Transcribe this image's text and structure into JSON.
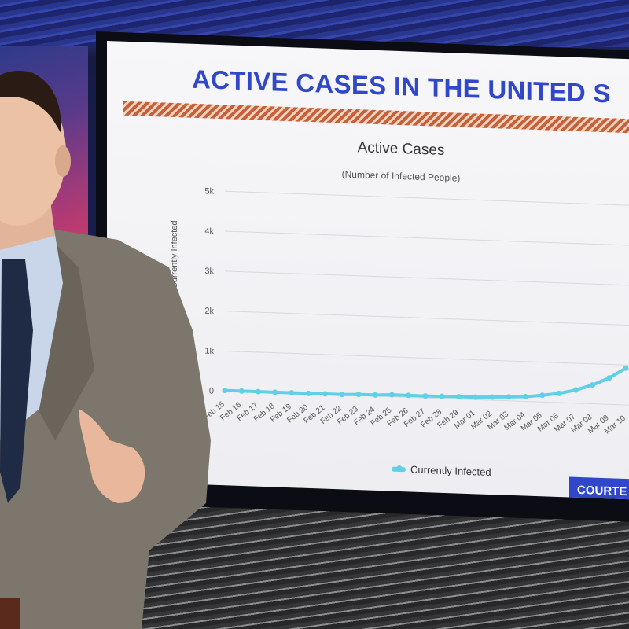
{
  "screen": {
    "headline": "ACTIVE CASES IN THE UNITED S",
    "credit": "COURTE"
  },
  "chart_data": {
    "type": "line",
    "title": "Active Cases",
    "subtitle": "(Number of Infected People)",
    "ylabel": "Coronavirus Currently Infected",
    "xlabel": "",
    "ylim": [
      0,
      5000
    ],
    "y_ticks": [
      "0",
      "1k",
      "2k",
      "3k",
      "4k",
      "5k"
    ],
    "y_tick_values": [
      0,
      1000,
      2000,
      3000,
      4000,
      5000
    ],
    "grid": true,
    "legend": "bottom",
    "x": [
      "Feb 15",
      "Feb 16",
      "Feb 17",
      "Feb 18",
      "Feb 19",
      "Feb 20",
      "Feb 21",
      "Feb 22",
      "Feb 23",
      "Feb 24",
      "Feb 25",
      "Feb 26",
      "Feb 27",
      "Feb 28",
      "Feb 29",
      "Mar 01",
      "Mar 02",
      "Mar 03",
      "Mar 04",
      "Mar 05",
      "Mar 06",
      "Mar 07",
      "Mar 08",
      "Mar 09",
      "Mar 10"
    ],
    "series": [
      {
        "name": "Currently Infected",
        "color": "#5fd0e6",
        "values": [
          12,
          12,
          12,
          12,
          12,
          12,
          14,
          14,
          30,
          30,
          50,
          50,
          50,
          55,
          60,
          65,
          80,
          100,
          120,
          170,
          230,
          330,
          470,
          660,
          920
        ]
      }
    ]
  }
}
